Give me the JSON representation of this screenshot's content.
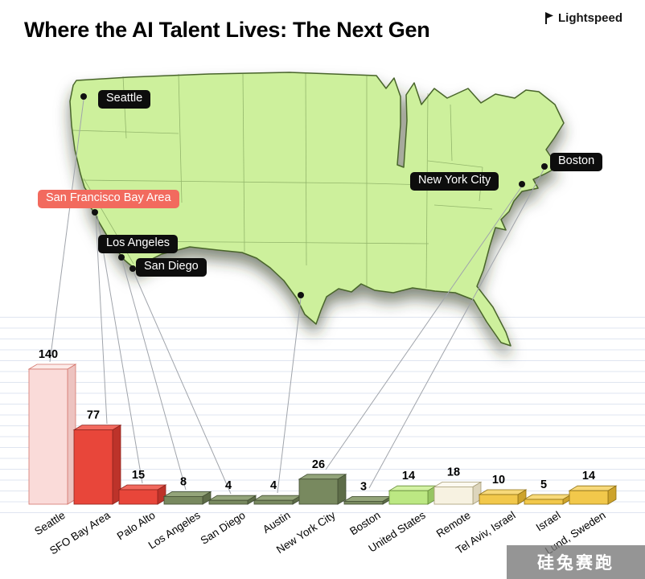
{
  "header": {
    "title": "Where the AI Talent Lives: The Next Gen",
    "brand": "Lightspeed"
  },
  "map": {
    "labels": [
      {
        "text": "Seattle",
        "variant": "black"
      },
      {
        "text": "San Francisco Bay Area",
        "variant": "red"
      },
      {
        "text": "Los Angeles",
        "variant": "black"
      },
      {
        "text": "San Diego",
        "variant": "black"
      },
      {
        "text": "New York City",
        "variant": "black"
      },
      {
        "text": "Boston",
        "variant": "black"
      }
    ]
  },
  "chart_data": {
    "type": "bar",
    "title": "Where the AI Talent Lives: The Next Gen",
    "categories": [
      "Seattle",
      "SFO Bay Area",
      "Palo Alto",
      "Los Angeles",
      "San Diego",
      "Austin",
      "New York City",
      "Boston",
      "United States",
      "Remote",
      "Tel Aviv, Israel",
      "Israel",
      "Lund, Sweden"
    ],
    "values": [
      140,
      77,
      15,
      8,
      4,
      4,
      26,
      3,
      14,
      18,
      10,
      5,
      14
    ],
    "xlabel": "",
    "ylabel": "",
    "ylim": [
      0,
      140
    ],
    "legend": "none",
    "grid": "horizontal-ruled-lines",
    "color_groups": [
      "pink",
      "red",
      "red",
      "olive",
      "olive",
      "olive",
      "olive",
      "olive",
      "lightgreen",
      "cream",
      "yellow",
      "yellow",
      "yellow"
    ],
    "palette": {
      "pink": {
        "front": "#fadbd9",
        "top": "#fcebe9",
        "side": "#edc3c0",
        "stroke": "#d4766c"
      },
      "red": {
        "front": "#e8463a",
        "top": "#f1695e",
        "side": "#bd332a",
        "stroke": "#8e241d"
      },
      "olive": {
        "front": "#78895f",
        "top": "#93a47a",
        "side": "#5d6c48",
        "stroke": "#414d32"
      },
      "lightgreen": {
        "front": "#bce883",
        "top": "#d3f2a4",
        "side": "#97c562",
        "stroke": "#648b37"
      },
      "cream": {
        "front": "#f7f2e1",
        "top": "#fcf9f0",
        "side": "#ddd5bc",
        "stroke": "#a79d77"
      },
      "yellow": {
        "front": "#f2c84b",
        "top": "#f7d97a",
        "side": "#cda32c",
        "stroke": "#8f7015"
      }
    },
    "map_fill": "#cdf09c",
    "map_stroke": "#48652c"
  },
  "watermark": {
    "text": "硅兔赛跑"
  }
}
